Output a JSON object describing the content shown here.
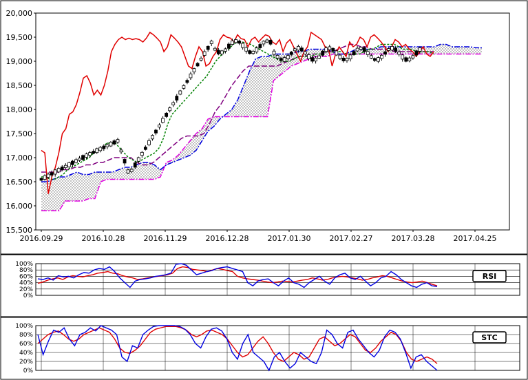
{
  "chart_data": [
    {
      "type": "candlestick",
      "ylim": [
        15500,
        20000
      ],
      "y_ticks": [
        "15,500",
        "16,000",
        "16,500",
        "17,000",
        "17,500",
        "18,000",
        "18,500",
        "19,000",
        "19,500",
        "20,000"
      ],
      "y_tick_values": [
        15500,
        16000,
        16500,
        17000,
        17500,
        18000,
        18500,
        19000,
        19500,
        20000
      ],
      "x_ticks": [
        "2016.09.29",
        "2016.10.28",
        "2016.11.29",
        "2016.12.28",
        "2017.01.30",
        "2017.02.27",
        "2017.03.28",
        "2017.04.25"
      ],
      "colors": {
        "lagging": "#e00000",
        "conversion": "#008000",
        "base": "#800080",
        "span_a": "#0000e0",
        "span_b": "#e000e0"
      },
      "series": {
        "lagging": [
          17150,
          17100,
          16250,
          16600,
          16800,
          17100,
          17500,
          17600,
          17900,
          17950,
          18100,
          18350,
          18650,
          18700,
          18550,
          18300,
          18400,
          18300,
          18500,
          18800,
          19200,
          19350,
          19450,
          19500,
          19450,
          19480,
          19450,
          19470,
          19450,
          19400,
          19480,
          19600,
          19550,
          19480,
          19400,
          19200,
          19300,
          19550,
          19480,
          19400,
          19300,
          19100,
          18900,
          18850,
          19100,
          19300,
          19200,
          18900,
          18950,
          19100,
          19200,
          19450,
          19550,
          19500,
          19480,
          19400,
          19550,
          19470,
          19450,
          19300,
          19450,
          19500,
          19400,
          19480,
          19550,
          19520,
          19400,
          19350,
          19450,
          19200,
          19380,
          19450,
          19300,
          19150,
          19000,
          19200,
          19300,
          19600,
          19550,
          19500,
          19450,
          19300,
          19250,
          18900,
          19150,
          19300,
          19200,
          19100,
          19400,
          19300,
          19350,
          19500,
          19450,
          19300,
          19500,
          19550,
          19480,
          19400,
          19300,
          19200,
          19300,
          19450,
          19400,
          19300,
          19350,
          19250,
          19200,
          19100,
          19200,
          19300,
          19150,
          19100,
          19200
        ],
        "conversion": [
          16600,
          16600,
          16550,
          16550,
          16600,
          16650,
          16750,
          16800,
          16850,
          16900,
          16950,
          17000,
          17100,
          17150,
          17200,
          17300,
          17300,
          17300,
          17200,
          17100,
          17000,
          16950,
          16900,
          16950,
          17000,
          17050,
          17100,
          17200,
          17400,
          17700,
          17900,
          18000,
          18100,
          18200,
          18300,
          18400,
          18500,
          18600,
          18700,
          18850,
          19000,
          19100,
          19200,
          19250,
          19350,
          19400,
          19400,
          19380,
          19350,
          19300,
          19250,
          19200,
          19150,
          19100,
          19050,
          19000,
          19000,
          19000,
          19050,
          19100,
          19100,
          19100,
          19100,
          19150,
          19150,
          19200,
          19200,
          19200,
          19200,
          19200,
          19150,
          19150,
          19150,
          19150,
          19200,
          19250,
          19250,
          19300,
          19350,
          19350,
          19350,
          19350,
          19300,
          19250,
          19250,
          19250,
          19200,
          19200,
          19200,
          19200,
          19150
        ],
        "base": [
          16700,
          16700,
          16700,
          16700,
          16750,
          16750,
          16800,
          16800,
          16850,
          16850,
          16900,
          16900,
          16950,
          17000,
          17000,
          17000,
          17000,
          16900,
          16850,
          16850,
          16900,
          17000,
          17100,
          17200,
          17300,
          17400,
          17450,
          17450,
          17450,
          17500,
          17700,
          17950,
          18100,
          18300,
          18500,
          18650,
          18800,
          18900,
          18900,
          18900,
          18900,
          18900,
          18900,
          18950,
          19000,
          19050,
          19100,
          19100,
          19150,
          19150,
          19150,
          19200,
          19200,
          19250,
          19300,
          19350,
          19350,
          19300,
          19300,
          19250,
          19250,
          19250,
          19250,
          19200,
          19200,
          19200,
          19200,
          19200,
          19200,
          19200,
          19200
        ],
        "span_a": [
          16500,
          16500,
          16550,
          16600,
          16600,
          16650,
          16700,
          16650,
          16650,
          16700,
          16700,
          16700,
          16700,
          16750,
          16800,
          16800,
          16850,
          16900,
          16900,
          16850,
          16750,
          16850,
          16900,
          16950,
          17000,
          17050,
          17150,
          17350,
          17550,
          17650,
          17800,
          17900,
          18000,
          18200,
          18500,
          18800,
          19050,
          19100,
          19100,
          19150,
          19150,
          19150,
          19150,
          19200,
          19200,
          19250,
          19250,
          19250,
          19250,
          19200,
          19150,
          19150,
          19200,
          19250,
          19250,
          19250,
          19250,
          19300,
          19300,
          19300,
          19300,
          19300,
          19300,
          19300,
          19300,
          19300,
          19300,
          19350,
          19350,
          19300,
          19300,
          19300,
          19300,
          19280,
          19280
        ],
        "span_b": [
          15900,
          15900,
          15900,
          15900,
          16100,
          16100,
          16100,
          16100,
          16150,
          16150,
          16500,
          16550,
          16550,
          16550,
          16550,
          16550,
          16550,
          16550,
          16550,
          16550,
          16600,
          16900,
          16950,
          17050,
          17200,
          17350,
          17500,
          17600,
          17800,
          17850,
          17850,
          17850,
          17850,
          17850,
          17850,
          17850,
          17850,
          17850,
          17850,
          18600,
          18700,
          18800,
          18900,
          18950,
          19000,
          19050,
          19100,
          19100,
          19100,
          19150,
          19150,
          19150,
          19150,
          19150,
          19150,
          19150,
          19150,
          19150,
          19150,
          19150,
          19150,
          19150,
          19150,
          19150,
          19150,
          19150,
          19150,
          19150,
          19150,
          19150,
          19150,
          19150,
          19150,
          19150,
          19150
        ]
      }
    },
    {
      "type": "line",
      "ylim": [
        0,
        100
      ],
      "y_ticks": [
        "100%",
        "80%",
        "60%",
        "40%",
        "20%",
        "0%"
      ],
      "y_tick_values": [
        100,
        80,
        60,
        40,
        20,
        0
      ],
      "legend": "RSI",
      "series": [
        {
          "color": "#e00000",
          "values": [
            38,
            42,
            48,
            52,
            55,
            50,
            58,
            62,
            60,
            58,
            62,
            65,
            70,
            72,
            75,
            70,
            68,
            62,
            58,
            55,
            50,
            52,
            55,
            58,
            60,
            62,
            65,
            70,
            85,
            90,
            88,
            82,
            80,
            78,
            75,
            80,
            85,
            82,
            78,
            75,
            60,
            55,
            52,
            50,
            48,
            45,
            42,
            40,
            42,
            45,
            44,
            42,
            45,
            48,
            50,
            55,
            52,
            48,
            50,
            55,
            58,
            60,
            58,
            55,
            52,
            48,
            50,
            55,
            58,
            62,
            60,
            55,
            50,
            45,
            42,
            40,
            42,
            45,
            40,
            35,
            30
          ]
        },
        {
          "color": "#0000e0",
          "values": [
            52,
            50,
            55,
            48,
            62,
            58,
            60,
            55,
            65,
            72,
            70,
            80,
            85,
            82,
            90,
            75,
            55,
            40,
            25,
            45,
            50,
            52,
            55,
            60,
            62,
            65,
            70,
            98,
            100,
            95,
            80,
            65,
            70,
            75,
            78,
            85,
            88,
            90,
            85,
            80,
            75,
            40,
            30,
            45,
            50,
            52,
            40,
            30,
            45,
            55,
            40,
            35,
            25,
            40,
            50,
            60,
            45,
            35,
            55,
            65,
            70,
            55,
            50,
            60,
            45,
            30,
            40,
            55,
            60,
            75,
            65,
            50,
            40,
            30,
            25,
            35,
            40,
            30,
            28
          ]
        }
      ]
    },
    {
      "type": "line",
      "ylim": [
        0,
        100
      ],
      "y_ticks": [
        "100%",
        "80%",
        "60%",
        "40%",
        "20%",
        "0%"
      ],
      "y_tick_values": [
        100,
        80,
        60,
        40,
        20,
        0
      ],
      "legend": "STC",
      "series": [
        {
          "color": "#e00000",
          "values": [
            60,
            70,
            80,
            85,
            88,
            80,
            70,
            65,
            70,
            80,
            85,
            90,
            95,
            90,
            85,
            70,
            50,
            40,
            38,
            45,
            55,
            70,
            85,
            92,
            95,
            98,
            98,
            98,
            95,
            90,
            80,
            75,
            80,
            88,
            90,
            85,
            80,
            70,
            55,
            40,
            30,
            35,
            50,
            65,
            75,
            60,
            40,
            25,
            20,
            30,
            40,
            35,
            25,
            30,
            50,
            70,
            75,
            65,
            55,
            60,
            70,
            80,
            75,
            60,
            45,
            40,
            50,
            65,
            75,
            85,
            80,
            65,
            40,
            25,
            20,
            25,
            30,
            25,
            15
          ]
        },
        {
          "color": "#0000e0",
          "values": [
            80,
            35,
            65,
            90,
            85,
            95,
            70,
            55,
            80,
            85,
            95,
            88,
            100,
            95,
            90,
            80,
            30,
            20,
            55,
            50,
            80,
            90,
            98,
            100,
            100,
            100,
            100,
            98,
            92,
            80,
            60,
            50,
            75,
            92,
            95,
            88,
            70,
            40,
            25,
            60,
            80,
            40,
            30,
            20,
            0,
            30,
            40,
            20,
            5,
            15,
            40,
            30,
            20,
            15,
            40,
            90,
            80,
            60,
            50,
            85,
            90,
            70,
            55,
            40,
            30,
            45,
            75,
            90,
            85,
            70,
            40,
            5,
            30,
            35,
            20,
            10,
            0
          ]
        }
      ]
    }
  ]
}
